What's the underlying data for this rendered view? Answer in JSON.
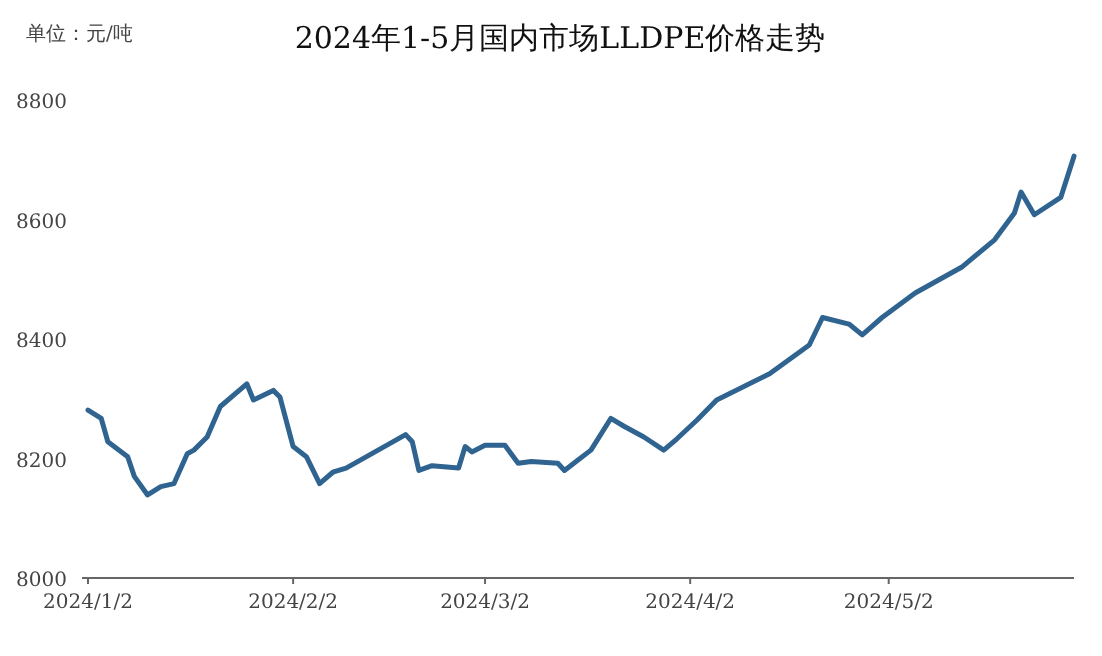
{
  "chart_data": {
    "type": "line",
    "title": "2024年1-5月国内市场LLDPE价格走势",
    "ylabel": "单位：元/吨",
    "xlim": [
      "2024-01-02",
      "2024-05-30"
    ],
    "xticks": [
      {
        "value": "2024-01-02",
        "label": "2024/1/2"
      },
      {
        "value": "2024-02-02",
        "label": "2024/2/2"
      },
      {
        "value": "2024-03-02",
        "label": "2024/3/2"
      },
      {
        "value": "2024-04-02",
        "label": "2024/4/2"
      },
      {
        "value": "2024-05-02",
        "label": "2024/5/2"
      }
    ],
    "ylim": [
      8000,
      8800
    ],
    "yticks": [
      8000,
      8200,
      8400,
      8600,
      8800
    ],
    "grid": false,
    "marker": "none",
    "line_style": "solid",
    "series": [
      {
        "color": "#2f6390",
        "x": [
          "2024-01-02",
          "2024-01-04",
          "2024-01-05",
          "2024-01-08",
          "2024-01-09",
          "2024-01-11",
          "2024-01-13",
          "2024-01-15",
          "2024-01-17",
          "2024-01-18",
          "2024-01-20",
          "2024-01-22",
          "2024-01-26",
          "2024-01-27",
          "2024-01-30",
          "2024-01-31",
          "2024-02-02",
          "2024-02-04",
          "2024-02-06",
          "2024-02-08",
          "2024-02-10",
          "2024-02-19",
          "2024-02-20",
          "2024-02-21",
          "2024-02-23",
          "2024-02-27",
          "2024-02-28",
          "2024-02-29",
          "2024-03-02",
          "2024-03-05",
          "2024-03-07",
          "2024-03-09",
          "2024-03-13",
          "2024-03-14",
          "2024-03-16",
          "2024-03-18",
          "2024-03-21",
          "2024-03-23",
          "2024-03-26",
          "2024-03-29",
          "2024-03-31",
          "2024-04-03",
          "2024-04-06",
          "2024-04-14",
          "2024-04-20",
          "2024-04-22",
          "2024-04-26",
          "2024-04-28",
          "2024-05-01",
          "2024-05-06",
          "2024-05-13",
          "2024-05-18",
          "2024-05-21",
          "2024-05-22",
          "2024-05-24",
          "2024-05-28",
          "2024-05-30"
        ],
        "values": [
          8281,
          8267,
          8228,
          8203,
          8170,
          8139,
          8153,
          8158,
          8208,
          8214,
          8236,
          8287,
          8325,
          8298,
          8314,
          8303,
          8220,
          8203,
          8158,
          8177,
          8184,
          8240,
          8228,
          8180,
          8188,
          8184,
          8220,
          8211,
          8222,
          8222,
          8192,
          8195,
          8192,
          8180,
          8197,
          8214,
          8267,
          8254,
          8236,
          8214,
          8233,
          8264,
          8298,
          8342,
          8390,
          8436,
          8425,
          8407,
          8436,
          8477,
          8520,
          8566,
          8611,
          8646,
          8608,
          8637,
          8706
        ]
      }
    ]
  }
}
